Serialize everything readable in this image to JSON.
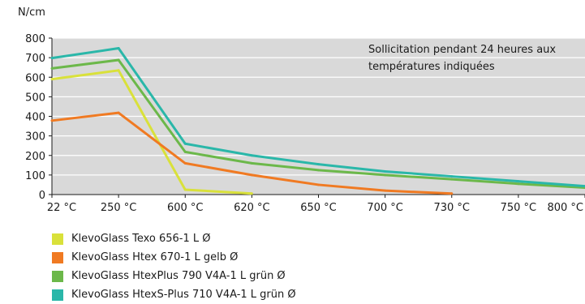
{
  "chart_data": {
    "type": "line",
    "ylabel": "N/cm",
    "categories": [
      "22 °C",
      "250 °C",
      "600 °C",
      "620 °C",
      "650 °C",
      "700 °C",
      "730 °C",
      "750 °C",
      "800 °C"
    ],
    "ylim": [
      0,
      800
    ],
    "yticks": [
      0,
      100,
      200,
      300,
      400,
      500,
      600,
      700,
      800
    ],
    "grid": true,
    "background": "#d9d9d9",
    "annotation": [
      "Sollicitation pendant 24 heures aux",
      "températures indiquées"
    ],
    "series": [
      {
        "name": "KlevoGlass Texo 656-1 L Ø",
        "color": "#d9e13a",
        "values": [
          590,
          635,
          25,
          5,
          null,
          null,
          null,
          null,
          null
        ]
      },
      {
        "name": "KlevoGlass Htex 670-1 L gelb Ø",
        "color": "#f07a22",
        "values": [
          378,
          418,
          160,
          100,
          50,
          20,
          5,
          null,
          null
        ]
      },
      {
        "name": "KlevoGlass HtexPlus 790 V4A-1 L grün Ø",
        "color": "#6cb84a",
        "values": [
          645,
          688,
          218,
          160,
          125,
          100,
          78,
          55,
          35
        ]
      },
      {
        "name": "KlevoGlass HtexS-Plus 710 V4A-1 L grün Ø",
        "color": "#2ab7a9",
        "values": [
          698,
          748,
          260,
          200,
          155,
          118,
          93,
          68,
          43
        ]
      }
    ]
  }
}
